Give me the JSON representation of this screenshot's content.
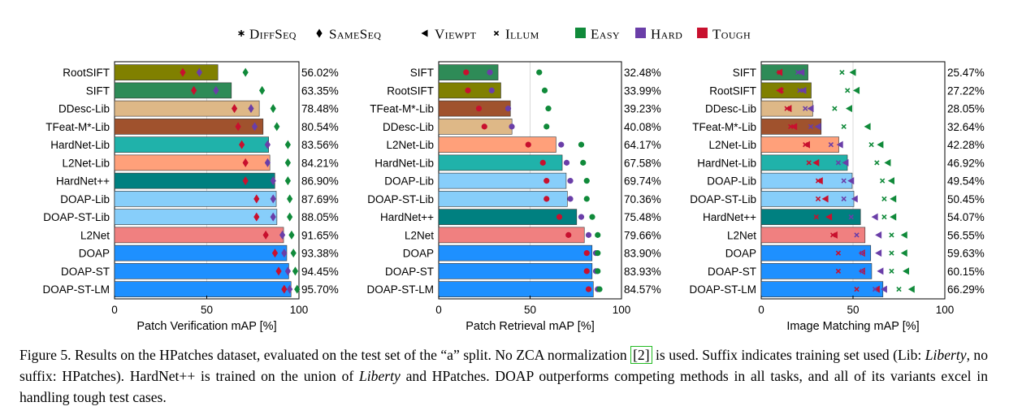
{
  "legend": {
    "markers": [
      {
        "label": "DiffSeq",
        "symbol": "asterisk"
      },
      {
        "label": "SameSeq",
        "symbol": "diamond"
      },
      {
        "label": "Viewpt",
        "symbol": "triangle-left"
      },
      {
        "label": "Illum",
        "symbol": "cross"
      }
    ],
    "colors": [
      {
        "label": "Easy",
        "color": "#108a3a"
      },
      {
        "label": "Hard",
        "color": "#6a3ea8"
      },
      {
        "label": "Tough",
        "color": "#c8102e"
      }
    ]
  },
  "chart_data": [
    {
      "type": "bar",
      "orientation": "horizontal",
      "xlabel": "Patch Verification mAP [%]",
      "xlim": [
        0,
        100
      ],
      "xticks": [
        0,
        50,
        100
      ],
      "grid": true,
      "marker_symbol": "diamond",
      "categories": [
        "RootSIFT",
        "SIFT",
        "DDesc-Lib",
        "TFeat-M*-Lib",
        "HardNet-Lib",
        "L2Net-Lib",
        "HardNet++",
        "DOAP-Lib",
        "DOAP-ST-Lib",
        "L2Net",
        "DOAP",
        "DOAP-ST",
        "DOAP-ST-LM"
      ],
      "values": [
        56.02,
        63.35,
        78.48,
        80.54,
        83.56,
        84.21,
        86.9,
        87.69,
        88.05,
        91.65,
        93.38,
        94.45,
        95.7
      ],
      "value_labels": [
        "56.02%",
        "63.35%",
        "78.48%",
        "80.54%",
        "83.56%",
        "84.21%",
        "86.90%",
        "87.69%",
        "88.05%",
        "91.65%",
        "93.38%",
        "94.45%",
        "95.70%"
      ],
      "bar_colors": [
        "#808000",
        "#2e8b57",
        "#deb887",
        "#a0522d",
        "#20b2aa",
        "#ffa07a",
        "#008080",
        "#87cefa",
        "#87cefa",
        "#f08080",
        "#1e90ff",
        "#1e90ff",
        "#1e90ff"
      ],
      "tough": [
        37,
        43,
        65,
        67,
        69,
        71,
        71,
        77,
        77,
        82,
        87,
        89,
        92
      ],
      "hard": [
        46,
        55,
        74,
        76,
        83,
        83,
        86,
        86,
        86,
        91,
        92,
        94,
        95
      ],
      "easy": [
        71,
        80,
        86,
        88,
        94,
        94,
        94,
        95,
        95,
        96,
        97,
        98,
        99
      ]
    },
    {
      "type": "bar",
      "orientation": "horizontal",
      "xlabel": "Patch Retrieval mAP [%]",
      "xlim": [
        0,
        100
      ],
      "xticks": [
        0,
        50,
        100
      ],
      "grid": true,
      "marker_symbol": "circle",
      "categories": [
        "SIFT",
        "RootSIFT",
        "TFeat-M*-Lib",
        "DDesc-Lib",
        "L2Net-Lib",
        "HardNet-Lib",
        "DOAP-Lib",
        "DOAP-ST-Lib",
        "HardNet++",
        "L2Net",
        "DOAP",
        "DOAP-ST",
        "DOAP-ST-LM"
      ],
      "values": [
        32.48,
        33.99,
        39.23,
        40.08,
        64.17,
        67.58,
        69.74,
        70.36,
        75.48,
        79.66,
        83.9,
        83.93,
        84.57
      ],
      "value_labels": [
        "32.48%",
        "33.99%",
        "39.23%",
        "40.08%",
        "64.17%",
        "67.58%",
        "69.74%",
        "70.36%",
        "75.48%",
        "79.66%",
        "83.90%",
        "83.93%",
        "84.57%"
      ],
      "bar_colors": [
        "#2e8b57",
        "#808000",
        "#a0522d",
        "#deb887",
        "#ffa07a",
        "#20b2aa",
        "#87cefa",
        "#87cefa",
        "#008080",
        "#f08080",
        "#1e90ff",
        "#1e90ff",
        "#1e90ff"
      ],
      "tough": [
        15,
        16,
        22,
        25,
        49,
        57,
        59,
        59,
        66,
        71,
        81,
        81,
        82
      ],
      "hard": [
        28,
        29,
        38,
        40,
        67,
        70,
        72,
        72,
        78,
        82,
        86,
        86,
        87
      ],
      "easy": [
        55,
        58,
        60,
        59,
        78,
        79,
        81,
        81,
        84,
        87,
        87,
        87,
        88
      ]
    },
    {
      "type": "bar",
      "orientation": "horizontal",
      "xlabel": "Image Matching mAP [%]",
      "xlim": [
        0,
        100
      ],
      "xticks": [
        0,
        50,
        100
      ],
      "grid": true,
      "marker_symbol": "cross-triangle",
      "categories": [
        "SIFT",
        "RootSIFT",
        "DDesc-Lib",
        "TFeat-M*-Lib",
        "L2Net-Lib",
        "HardNet-Lib",
        "DOAP-Lib",
        "DOAP-ST-Lib",
        "HardNet++",
        "L2Net",
        "DOAP",
        "DOAP-ST",
        "DOAP-ST-LM"
      ],
      "values": [
        25.47,
        27.22,
        28.05,
        32.64,
        42.28,
        46.92,
        49.54,
        50.45,
        54.07,
        56.55,
        59.63,
        60.15,
        66.29
      ],
      "value_labels": [
        "25.47%",
        "27.22%",
        "28.05%",
        "32.64%",
        "42.28%",
        "46.92%",
        "49.54%",
        "50.45%",
        "54.07%",
        "56.55%",
        "59.63%",
        "60.15%",
        "66.29%"
      ],
      "bar_colors": [
        "#2e8b57",
        "#808000",
        "#deb887",
        "#a0522d",
        "#ffa07a",
        "#20b2aa",
        "#87cefa",
        "#87cefa",
        "#008080",
        "#f08080",
        "#1e90ff",
        "#1e90ff",
        "#1e90ff"
      ],
      "tough_illum": [
        10,
        11,
        14,
        16,
        24,
        26,
        31,
        31,
        30,
        39,
        42,
        42,
        52
      ],
      "tough_viewpt": [
        10,
        10,
        15,
        18,
        25,
        30,
        32,
        35,
        37,
        40,
        55,
        55,
        63
      ],
      "hard_illum": [
        20,
        21,
        24,
        27,
        38,
        42,
        45,
        45,
        49,
        52,
        55,
        55,
        62
      ],
      "hard_viewpt": [
        22,
        23,
        27,
        31,
        43,
        46,
        49,
        51,
        62,
        64,
        64,
        65,
        67
      ],
      "easy_illum": [
        44,
        47,
        40,
        45,
        60,
        63,
        66,
        67,
        67,
        71,
        71,
        71,
        75
      ],
      "easy_viewpt": [
        50,
        52,
        48,
        58,
        65,
        69,
        71,
        72,
        72,
        78,
        78,
        79,
        82
      ]
    }
  ],
  "caption": {
    "lead": "Figure 5. Results on the HPatches dataset, evaluated on the test set of the “a” split.  No ZCA normalization ",
    "cite": "[2]",
    "mid1": " is used.  Suffix indicates training set used (Lib: ",
    "em1": "Liberty",
    "mid2": ", no suffix: HPatches).  HardNet++ is trained on the union of ",
    "em2": "Liberty",
    "tail": " and HPatches.  DOAP outperforms competing methods in all tasks, and all of its variants excel in handling tough test cases."
  }
}
